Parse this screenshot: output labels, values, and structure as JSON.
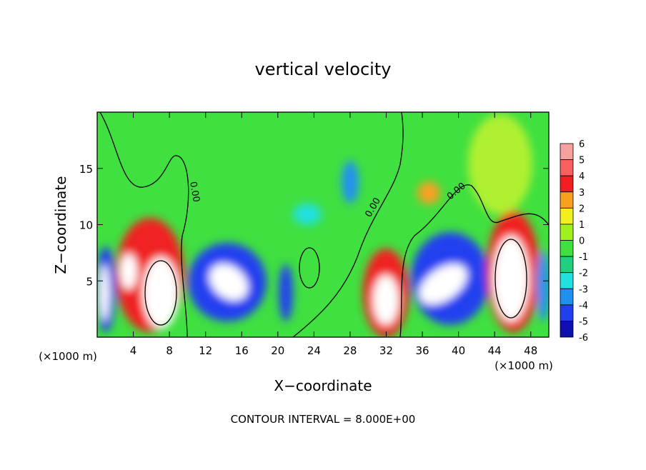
{
  "chart_data": {
    "type": "contour",
    "title": "vertical velocity",
    "x_label": "X−coordinate",
    "y_label": "Z−coordinate",
    "x_unit_label": "(×1000 m)",
    "contour_label": "0.00",
    "annotation": "CONTOUR INTERVAL = 8.000E+00",
    "xlim": [
      0,
      50
    ],
    "xticks": [
      4,
      8,
      12,
      16,
      20,
      24,
      28,
      32,
      36,
      40,
      44,
      48
    ],
    "ylim": [
      0,
      20
    ],
    "yticks": [
      5,
      10,
      15
    ],
    "colorbar": {
      "ticks": [
        6,
        5,
        4,
        3,
        2,
        1,
        0,
        -1,
        -2,
        -3,
        -4,
        -5,
        -6
      ],
      "colors": [
        "#f7a0a0",
        "#f86060",
        "#f02020",
        "#f8a020",
        "#f0f020",
        "#a0f020",
        "#40e040",
        "#20d080",
        "#20e0e0",
        "#2090f0",
        "#2040f0",
        "#1010b0"
      ]
    }
  }
}
